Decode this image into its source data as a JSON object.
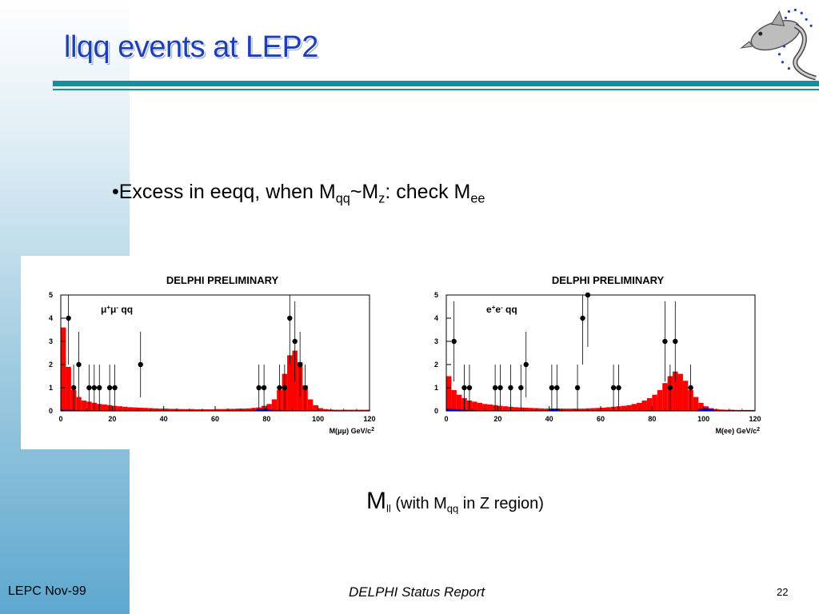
{
  "slide": {
    "title": "llqq events at LEP2",
    "bullet": {
      "prefix": "•Excess in eeqq, when M",
      "sub1": "qq",
      "mid": "~M",
      "sub2": "z",
      "mid2": ": check M",
      "sub3": "ee"
    },
    "caption": {
      "big": "M",
      "big_sub": "ll",
      "text1": " (with M",
      "sub": "qq",
      "text2": " in Z region)"
    },
    "footer": {
      "left": "LEPC Nov-99",
      "center": "DELPHI Status Report",
      "right": "22"
    },
    "logo_icon": "dolphin-logo-icon",
    "colors": {
      "title": "#1c3fb8",
      "rule": "#11919c",
      "hist": "#ff0000",
      "background_hist": "#0000dd"
    }
  },
  "chart_data": [
    {
      "type": "bar",
      "title": "DELPHI PRELIMINARY",
      "label_main": "μ",
      "label_sup1": "+",
      "label_mid": "μ",
      "label_sup2": "-",
      "label_tail": " qq",
      "xlabel": "M(μμ) GeV/c",
      "xlabel_sup": "2",
      "xlim": [
        0,
        120
      ],
      "ylim": [
        0,
        5
      ],
      "xticks": [
        0,
        20,
        40,
        60,
        80,
        100,
        120
      ],
      "yticks": [
        0,
        1,
        2,
        3,
        4,
        5
      ],
      "bin_width": 2,
      "mc_bins": [
        3.6,
        1.9,
        0.9,
        0.6,
        0.45,
        0.4,
        0.35,
        0.3,
        0.28,
        0.25,
        0.22,
        0.2,
        0.18,
        0.16,
        0.15,
        0.14,
        0.13,
        0.12,
        0.11,
        0.1,
        0.1,
        0.09,
        0.09,
        0.08,
        0.08,
        0.08,
        0.07,
        0.07,
        0.07,
        0.07,
        0.08,
        0.08,
        0.09,
        0.09,
        0.1,
        0.1,
        0.11,
        0.13,
        0.15,
        0.22,
        0.3,
        0.5,
        0.9,
        1.6,
        2.4,
        2.6,
        2.1,
        1.1,
        0.5,
        0.25,
        0.12,
        0.08,
        0.06,
        0.05,
        0.05,
        0.05,
        0.05,
        0.05,
        0.05,
        0.05
      ],
      "background_bins": [
        0.05,
        0.05,
        0.04,
        0.04,
        0.03,
        0.03,
        0.03,
        0.03,
        0.02,
        0.02,
        0.02,
        0.02,
        0.02,
        0.02,
        0.02,
        0.02,
        0.02,
        0.02,
        0.02,
        0.02,
        0.02,
        0.02,
        0.02,
        0.02,
        0.02,
        0.02,
        0.02,
        0.02,
        0.02,
        0.02,
        0.02,
        0.02,
        0.02,
        0.02,
        0.02,
        0.02,
        0.02,
        0.02,
        0.08,
        0.1,
        0.06,
        0.04,
        0.04,
        0.03,
        0.03,
        0.03,
        0.03,
        0.03,
        0.03,
        0.03,
        0.03,
        0.03,
        0.02,
        0.02,
        0.02,
        0.02,
        0.02,
        0.02,
        0.02,
        0.02
      ],
      "data_points": [
        {
          "x": 3,
          "y": 4
        },
        {
          "x": 5,
          "y": 1
        },
        {
          "x": 7,
          "y": 2
        },
        {
          "x": 11,
          "y": 1
        },
        {
          "x": 13,
          "y": 1
        },
        {
          "x": 15,
          "y": 1
        },
        {
          "x": 19,
          "y": 1
        },
        {
          "x": 21,
          "y": 1
        },
        {
          "x": 31,
          "y": 2
        },
        {
          "x": 77,
          "y": 1
        },
        {
          "x": 79,
          "y": 1
        },
        {
          "x": 85,
          "y": 1
        },
        {
          "x": 87,
          "y": 1
        },
        {
          "x": 89,
          "y": 4
        },
        {
          "x": 91,
          "y": 3
        },
        {
          "x": 93,
          "y": 2
        },
        {
          "x": 95,
          "y": 1
        }
      ]
    },
    {
      "type": "bar",
      "title": "DELPHI PRELIMINARY",
      "label_main": "e",
      "label_sup1": "+",
      "label_mid": "e",
      "label_sup2": "-",
      "label_tail": " qq",
      "xlabel": "M(ee) GeV/c",
      "xlabel_sup": "2",
      "xlim": [
        0,
        120
      ],
      "ylim": [
        0,
        5
      ],
      "xticks": [
        0,
        20,
        40,
        60,
        80,
        100,
        120
      ],
      "yticks": [
        0,
        1,
        2,
        3,
        4,
        5
      ],
      "bin_width": 2,
      "mc_bins": [
        1.5,
        0.9,
        0.7,
        0.55,
        0.45,
        0.4,
        0.35,
        0.3,
        0.28,
        0.25,
        0.22,
        0.2,
        0.18,
        0.16,
        0.15,
        0.14,
        0.13,
        0.12,
        0.11,
        0.1,
        0.1,
        0.1,
        0.1,
        0.1,
        0.1,
        0.1,
        0.1,
        0.11,
        0.12,
        0.13,
        0.14,
        0.16,
        0.18,
        0.2,
        0.22,
        0.25,
        0.3,
        0.35,
        0.45,
        0.55,
        0.7,
        0.9,
        1.2,
        1.5,
        1.7,
        1.6,
        1.3,
        0.9,
        0.6,
        0.35,
        0.2,
        0.12,
        0.08,
        0.06,
        0.05,
        0.05,
        0.04,
        0.04,
        0.04,
        0.04
      ],
      "background_bins": [
        0.1,
        0.08,
        0.06,
        0.05,
        0.04,
        0.04,
        0.03,
        0.03,
        0.03,
        0.03,
        0.03,
        0.03,
        0.03,
        0.03,
        0.03,
        0.03,
        0.03,
        0.03,
        0.03,
        0.03,
        0.1,
        0.1,
        0.03,
        0.03,
        0.03,
        0.03,
        0.03,
        0.03,
        0.03,
        0.03,
        0.03,
        0.03,
        0.03,
        0.03,
        0.03,
        0.03,
        0.03,
        0.03,
        0.03,
        0.03,
        0.03,
        0.03,
        0.03,
        0.03,
        0.03,
        0.03,
        0.03,
        0.03,
        0.03,
        0.1,
        0.12,
        0.08,
        0.03,
        0.03,
        0.03,
        0.03,
        0.03,
        0.03,
        0.03,
        0.03
      ],
      "data_points": [
        {
          "x": 3,
          "y": 3
        },
        {
          "x": 7,
          "y": 1
        },
        {
          "x": 9,
          "y": 1
        },
        {
          "x": 19,
          "y": 1
        },
        {
          "x": 21,
          "y": 1
        },
        {
          "x": 25,
          "y": 1
        },
        {
          "x": 29,
          "y": 1
        },
        {
          "x": 31,
          "y": 2
        },
        {
          "x": 41,
          "y": 1
        },
        {
          "x": 43,
          "y": 1
        },
        {
          "x": 51,
          "y": 1
        },
        {
          "x": 53,
          "y": 4
        },
        {
          "x": 55,
          "y": 5
        },
        {
          "x": 65,
          "y": 1
        },
        {
          "x": 67,
          "y": 1
        },
        {
          "x": 85,
          "y": 3
        },
        {
          "x": 87,
          "y": 1
        },
        {
          "x": 89,
          "y": 3
        },
        {
          "x": 95,
          "y": 1
        }
      ]
    }
  ]
}
